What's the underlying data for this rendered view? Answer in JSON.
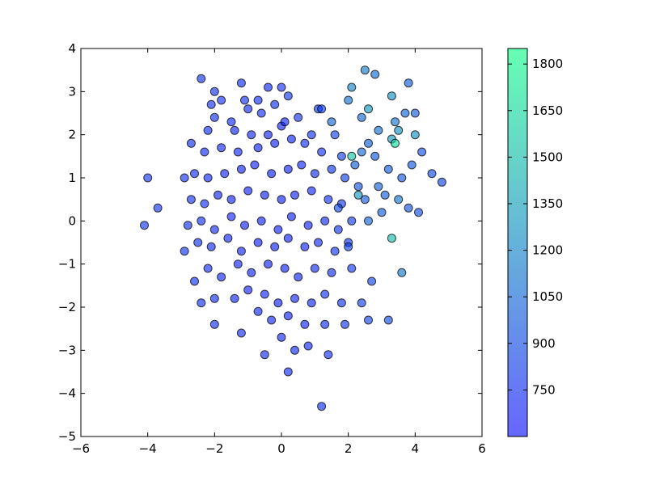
{
  "chart_data": {
    "type": "scatter",
    "title": "",
    "xlabel": "",
    "ylabel": "",
    "xlim": [
      -6,
      6
    ],
    "ylim": [
      -5,
      4
    ],
    "xticks": [
      "−6",
      "−4",
      "−2",
      "0",
      "2",
      "4",
      "6"
    ],
    "yticks": [
      "−5",
      "−4",
      "−3",
      "−2",
      "−1",
      "0",
      "1",
      "2",
      "3",
      "4"
    ],
    "grid": false,
    "marker": "circle",
    "opacity": 0.6,
    "colormap": {
      "name": "winter",
      "low_color": "#0000ff",
      "high_color": "#00ff80",
      "vmin": 600,
      "vmax": 1850,
      "tick_values": [
        750,
        900,
        1050,
        1200,
        1350,
        1500,
        1650,
        1800
      ],
      "ticks": [
        "750",
        "900",
        "1050",
        "1200",
        "1350",
        "1500",
        "1650",
        "1800"
      ]
    },
    "points": [
      [
        -2.4,
        3.3,
        780
      ],
      [
        -2.0,
        3.0,
        760
      ],
      [
        -1.2,
        3.2,
        740
      ],
      [
        -0.4,
        3.1,
        730
      ],
      [
        0.0,
        3.1,
        760
      ],
      [
        0.2,
        2.9,
        800
      ],
      [
        -1.8,
        2.8,
        760
      ],
      [
        -1.1,
        2.8,
        760
      ],
      [
        -0.7,
        2.8,
        740
      ],
      [
        -0.2,
        2.7,
        760
      ],
      [
        1.1,
        2.6,
        820
      ],
      [
        1.2,
        2.6,
        850
      ],
      [
        -2.1,
        2.7,
        760
      ],
      [
        -2.0,
        2.4,
        750
      ],
      [
        -1.5,
        2.3,
        740
      ],
      [
        -1.0,
        2.6,
        730
      ],
      [
        -0.6,
        2.5,
        740
      ],
      [
        0.5,
        2.4,
        780
      ],
      [
        -2.2,
        2.1,
        750
      ],
      [
        -1.4,
        2.1,
        720
      ],
      [
        -0.9,
        2.0,
        720
      ],
      [
        -0.4,
        2.0,
        700
      ],
      [
        0.0,
        2.2,
        700
      ],
      [
        0.1,
        2.3,
        720
      ],
      [
        0.9,
        2.0,
        760
      ],
      [
        1.6,
        2.0,
        880
      ],
      [
        -2.7,
        1.8,
        760
      ],
      [
        -2.3,
        1.6,
        740
      ],
      [
        -1.8,
        1.7,
        730
      ],
      [
        -1.3,
        1.6,
        720
      ],
      [
        -0.7,
        1.7,
        700
      ],
      [
        -0.2,
        1.8,
        700
      ],
      [
        0.3,
        1.9,
        720
      ],
      [
        0.7,
        1.8,
        760
      ],
      [
        1.2,
        1.6,
        780
      ],
      [
        1.8,
        1.5,
        850
      ],
      [
        -2.9,
        1.0,
        780
      ],
      [
        -2.6,
        1.1,
        760
      ],
      [
        -2.2,
        1.0,
        740
      ],
      [
        -1.7,
        1.1,
        720
      ],
      [
        -1.2,
        1.2,
        700
      ],
      [
        -0.8,
        1.3,
        700
      ],
      [
        -0.3,
        1.1,
        690
      ],
      [
        0.2,
        1.2,
        700
      ],
      [
        0.6,
        1.3,
        720
      ],
      [
        1.0,
        1.1,
        760
      ],
      [
        1.5,
        1.2,
        800
      ],
      [
        1.9,
        1.0,
        860
      ],
      [
        -4.0,
        1.0,
        800
      ],
      [
        -3.7,
        0.3,
        790
      ],
      [
        -4.1,
        -0.1,
        800
      ],
      [
        -2.7,
        0.5,
        770
      ],
      [
        -2.3,
        0.4,
        750
      ],
      [
        -1.9,
        0.6,
        730
      ],
      [
        -1.5,
        0.5,
        710
      ],
      [
        -1.0,
        0.7,
        700
      ],
      [
        -0.5,
        0.6,
        690
      ],
      [
        0.0,
        0.5,
        690
      ],
      [
        0.4,
        0.6,
        700
      ],
      [
        0.9,
        0.7,
        730
      ],
      [
        1.4,
        0.5,
        770
      ],
      [
        1.8,
        0.4,
        800
      ],
      [
        -2.8,
        -0.1,
        770
      ],
      [
        -2.4,
        0.0,
        750
      ],
      [
        -2.0,
        -0.2,
        730
      ],
      [
        -1.5,
        0.1,
        710
      ],
      [
        -1.1,
        -0.1,
        700
      ],
      [
        -0.6,
        0.0,
        690
      ],
      [
        -0.1,
        -0.2,
        690
      ],
      [
        0.3,
        0.1,
        690
      ],
      [
        0.8,
        -0.1,
        710
      ],
      [
        1.3,
        0.0,
        740
      ],
      [
        1.7,
        -0.2,
        780
      ],
      [
        2.1,
        0.0,
        820
      ],
      [
        -2.9,
        -0.7,
        780
      ],
      [
        -2.5,
        -0.5,
        760
      ],
      [
        -2.1,
        -0.6,
        740
      ],
      [
        -1.6,
        -0.4,
        720
      ],
      [
        -1.2,
        -0.7,
        700
      ],
      [
        -0.7,
        -0.5,
        690
      ],
      [
        -0.2,
        -0.6,
        690
      ],
      [
        0.2,
        -0.4,
        690
      ],
      [
        0.7,
        -0.6,
        710
      ],
      [
        1.1,
        -0.5,
        740
      ],
      [
        1.6,
        -0.7,
        780
      ],
      [
        2.0,
        -0.5,
        810
      ],
      [
        -2.6,
        -1.4,
        770
      ],
      [
        -2.2,
        -1.1,
        750
      ],
      [
        -1.8,
        -1.3,
        730
      ],
      [
        -1.3,
        -1.0,
        710
      ],
      [
        -0.9,
        -1.2,
        700
      ],
      [
        -0.4,
        -1.0,
        690
      ],
      [
        0.1,
        -1.1,
        690
      ],
      [
        0.5,
        -1.3,
        700
      ],
      [
        1.0,
        -1.1,
        730
      ],
      [
        1.5,
        -1.2,
        760
      ],
      [
        2.1,
        -1.1,
        800
      ],
      [
        -2.4,
        -1.9,
        760
      ],
      [
        -2.0,
        -1.8,
        740
      ],
      [
        -1.4,
        -1.8,
        720
      ],
      [
        -1.0,
        -1.6,
        710
      ],
      [
        -0.5,
        -1.7,
        700
      ],
      [
        -0.1,
        -1.9,
        690
      ],
      [
        0.4,
        -1.8,
        700
      ],
      [
        0.9,
        -1.9,
        720
      ],
      [
        1.3,
        -1.7,
        750
      ],
      [
        1.8,
        -1.9,
        780
      ],
      [
        -2.0,
        -2.4,
        760
      ],
      [
        -1.2,
        -2.6,
        740
      ],
      [
        -0.7,
        -2.1,
        720
      ],
      [
        -0.3,
        -2.3,
        710
      ],
      [
        0.2,
        -2.2,
        710
      ],
      [
        0.7,
        -2.4,
        720
      ],
      [
        1.3,
        -2.4,
        750
      ],
      [
        1.9,
        -2.4,
        780
      ],
      [
        -0.5,
        -3.1,
        730
      ],
      [
        0.0,
        -2.7,
        720
      ],
      [
        0.4,
        -3.0,
        720
      ],
      [
        0.8,
        -2.9,
        730
      ],
      [
        1.4,
        -3.1,
        760
      ],
      [
        0.2,
        -3.5,
        740
      ],
      [
        1.2,
        -4.3,
        760
      ],
      [
        2.4,
        -1.9,
        840
      ],
      [
        2.6,
        -2.3,
        870
      ],
      [
        3.2,
        -2.3,
        900
      ],
      [
        2.7,
        -1.4,
        880
      ],
      [
        2.2,
        1.3,
        1000
      ],
      [
        2.4,
        1.6,
        1050
      ],
      [
        2.6,
        1.8,
        1000
      ],
      [
        2.8,
        1.5,
        980
      ],
      [
        2.3,
        0.8,
        960
      ],
      [
        2.5,
        0.5,
        980
      ],
      [
        2.9,
        0.8,
        1020
      ],
      [
        3.2,
        1.2,
        1000
      ],
      [
        3.6,
        1.0,
        960
      ],
      [
        3.9,
        1.3,
        950
      ],
      [
        4.2,
        1.6,
        920
      ],
      [
        4.5,
        1.1,
        900
      ],
      [
        4.8,
        0.9,
        880
      ],
      [
        3.8,
        0.3,
        940
      ],
      [
        4.1,
        0.2,
        920
      ],
      [
        3.0,
        0.2,
        1000
      ],
      [
        2.6,
        0.0,
        1020
      ],
      [
        2.4,
        2.4,
        1050
      ],
      [
        2.9,
        2.1,
        1080
      ],
      [
        3.4,
        2.3,
        1120
      ],
      [
        3.7,
        2.5,
        1040
      ],
      [
        4.0,
        2.5,
        980
      ],
      [
        3.8,
        3.2,
        1000
      ],
      [
        2.8,
        3.4,
        1080
      ],
      [
        2.5,
        3.5,
        1150
      ],
      [
        2.1,
        3.1,
        1200
      ],
      [
        3.3,
        2.9,
        1250
      ],
      [
        3.5,
        2.1,
        1260
      ],
      [
        3.3,
        1.9,
        1300
      ],
      [
        3.4,
        1.8,
        1650
      ],
      [
        2.1,
        1.5,
        1550
      ],
      [
        2.6,
        2.6,
        1300
      ],
      [
        4.0,
        2.0,
        1250
      ],
      [
        3.3,
        -0.4,
        1500
      ],
      [
        3.6,
        -1.2,
        1150
      ],
      [
        2.0,
        2.8,
        1100
      ],
      [
        1.5,
        2.3,
        1050
      ],
      [
        3.1,
        0.6,
        1000
      ],
      [
        2.3,
        0.6,
        1300
      ],
      [
        3.5,
        0.5,
        1120
      ],
      [
        1.7,
        0.3,
        900
      ],
      [
        2.0,
        -0.6,
        880
      ]
    ]
  }
}
